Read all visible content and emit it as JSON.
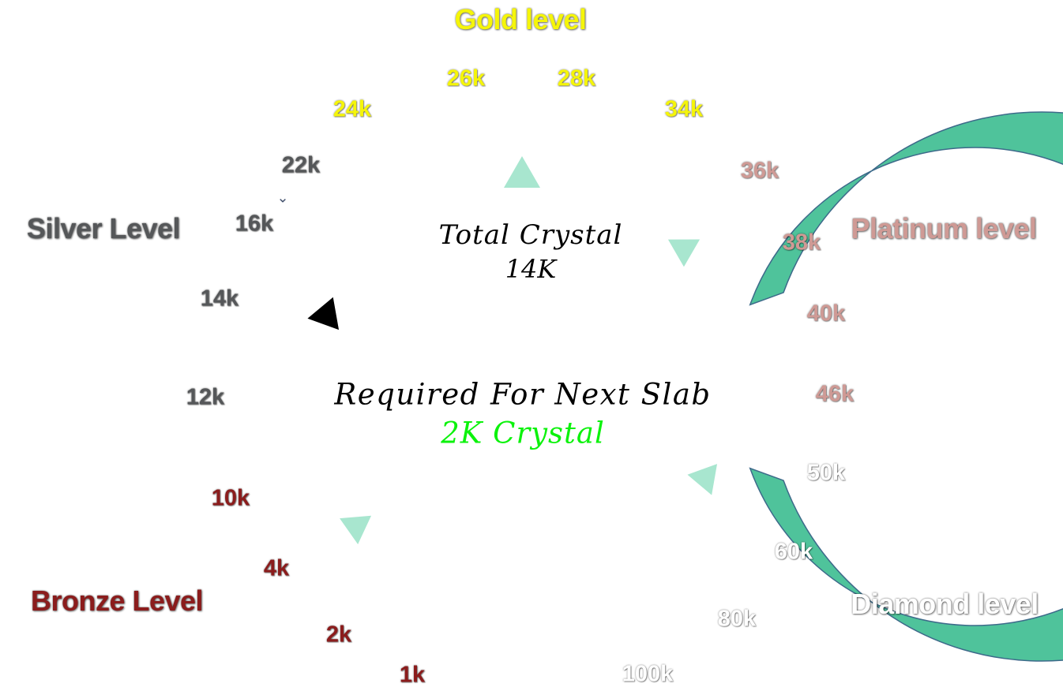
{
  "levels": {
    "gold": {
      "label": "Gold level",
      "color": "#f5f50a"
    },
    "silver": {
      "label": "Silver Level",
      "color": "#555759"
    },
    "platinum": {
      "label": "Platinum level",
      "color": "#cf9a95"
    },
    "bronze": {
      "label": "Bronze Level",
      "color": "#8b1c1c"
    },
    "diamond": {
      "label": "Diamond level",
      "color": "#ffffff"
    }
  },
  "ticks": [
    {
      "label": "1k",
      "color": "#8b1c1c"
    },
    {
      "label": "2k",
      "color": "#8b1c1c"
    },
    {
      "label": "4k",
      "color": "#8b1c1c"
    },
    {
      "label": "10k",
      "color": "#8b1c1c"
    },
    {
      "label": "12k",
      "color": "#555759"
    },
    {
      "label": "14k",
      "color": "#555759"
    },
    {
      "label": "16k",
      "color": "#555759"
    },
    {
      "label": "22k",
      "color": "#555759"
    },
    {
      "label": "24k",
      "color": "#f5f50a"
    },
    {
      "label": "26k",
      "color": "#f5f50a"
    },
    {
      "label": "28k",
      "color": "#f5f50a"
    },
    {
      "label": "34k",
      "color": "#f5f50a"
    },
    {
      "label": "36k",
      "color": "#cf9a95"
    },
    {
      "label": "38k",
      "color": "#cf9a95"
    },
    {
      "label": "40k",
      "color": "#cf9a95"
    },
    {
      "label": "46k",
      "color": "#cf9a95"
    },
    {
      "label": "50k",
      "color": "#ffffff"
    },
    {
      "label": "60k",
      "color": "#ffffff"
    },
    {
      "label": "80k",
      "color": "#ffffff"
    },
    {
      "label": "100k",
      "color": "#ffffff"
    }
  ],
  "center": {
    "total_label": "Total Crystal",
    "total_value": "14K",
    "required_label": "Required For Next Slab",
    "required_value": "2K Crystal",
    "required_value_color": "#0cf20c"
  },
  "ring": {
    "color": "#4fc39b",
    "stroke_color": "#3d6a8a"
  },
  "marker_color": "#a8e6cf",
  "current_marker_color": "#000000",
  "current_value": "14k"
}
